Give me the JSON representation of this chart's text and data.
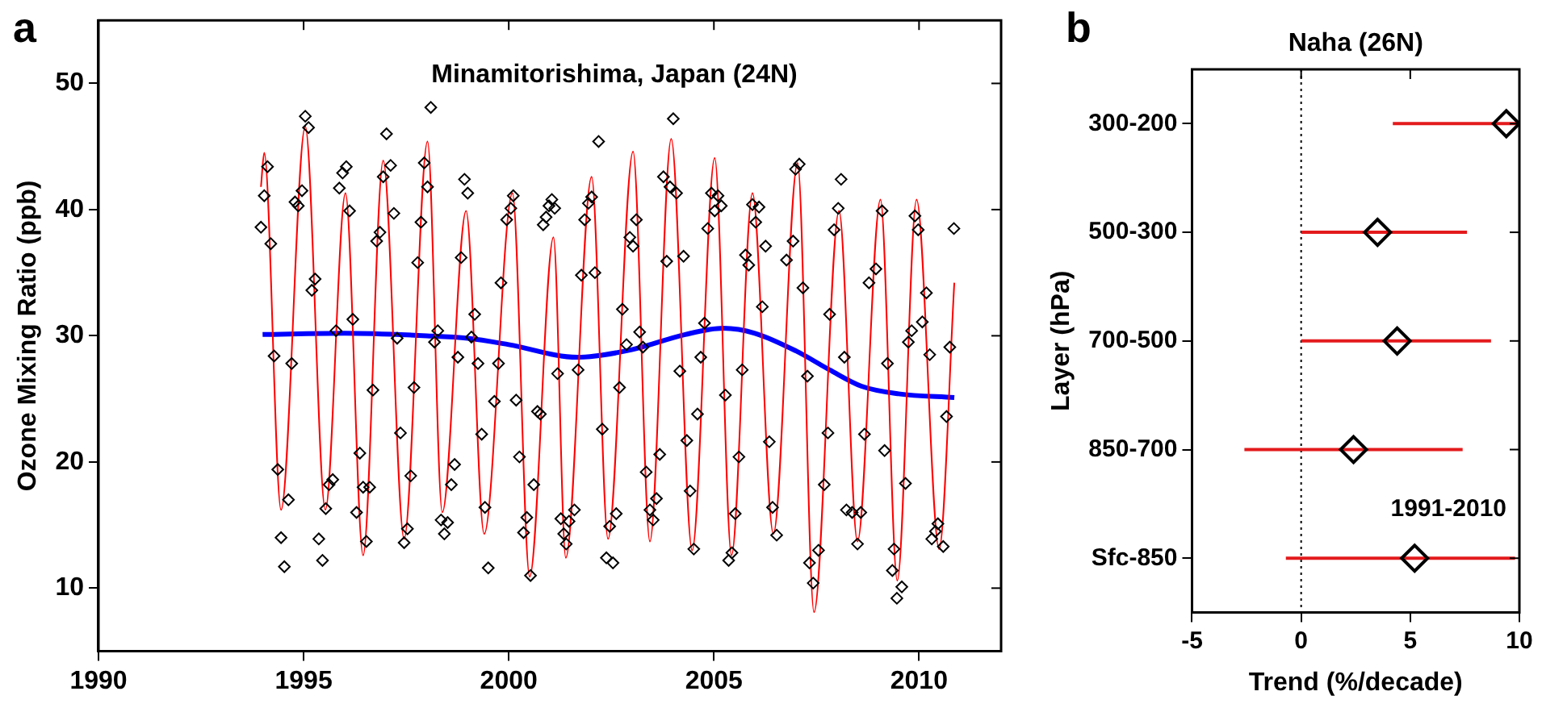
{
  "chart_data": [
    {
      "type": "scatter",
      "title": "Minamitorishima, Japan (24N)",
      "ylabel": "Ozone Mixing Ratio (ppb)",
      "annotations": [
        "a"
      ],
      "xlim": [
        1990,
        2012
      ],
      "xticks": [
        1990,
        1995,
        2000,
        2005,
        2010
      ],
      "ylim": [
        5,
        55
      ],
      "yticks": [
        10,
        20,
        30,
        40,
        50
      ],
      "series": [
        {
          "marker": "diamond",
          "color": "#000000",
          "x": [
            1993.96,
            1994.04,
            1994.12,
            1994.2,
            1994.28,
            1994.37,
            1994.45,
            1994.53,
            1994.63,
            1994.71,
            1994.79,
            1994.87,
            1994.96,
            1995.04,
            1995.12,
            1995.2,
            1995.28,
            1995.37,
            1995.46,
            1995.54,
            1995.62,
            1995.71,
            1995.79,
            1995.87,
            1995.95,
            1996.04,
            1996.12,
            1996.2,
            1996.29,
            1996.37,
            1996.45,
            1996.53,
            1996.61,
            1996.69,
            1996.78,
            1996.86,
            1996.94,
            1997.02,
            1997.12,
            1997.2,
            1997.28,
            1997.36,
            1997.45,
            1997.53,
            1997.61,
            1997.69,
            1997.78,
            1997.86,
            1997.94,
            1998.02,
            1998.1,
            1998.19,
            1998.27,
            1998.35,
            1998.43,
            1998.51,
            1998.6,
            1998.68,
            1998.76,
            1998.84,
            1998.92,
            1999.0,
            1999.09,
            1999.17,
            1999.25,
            1999.34,
            1999.42,
            1999.5,
            1999.65,
            1999.75,
            1999.81,
            1999.95,
            2000.05,
            2000.11,
            2000.18,
            2000.26,
            2000.36,
            2000.44,
            2000.53,
            2000.61,
            2000.7,
            2000.77,
            2000.84,
            2000.91,
            2000.98,
            2001.05,
            2001.12,
            2001.19,
            2001.27,
            2001.34,
            2001.4,
            2001.47,
            2001.6,
            2001.69,
            2001.77,
            2001.85,
            2001.94,
            2002.02,
            2002.1,
            2002.19,
            2002.28,
            2002.38,
            2002.46,
            2002.54,
            2002.62,
            2002.7,
            2002.77,
            2002.87,
            2002.95,
            2003.03,
            2003.11,
            2003.19,
            2003.27,
            2003.35,
            2003.44,
            2003.52,
            2003.6,
            2003.68,
            2003.77,
            2003.85,
            2003.93,
            2004.01,
            2004.09,
            2004.17,
            2004.26,
            2004.34,
            2004.42,
            2004.51,
            2004.6,
            2004.68,
            2004.77,
            2004.85,
            2004.94,
            2005.02,
            2005.1,
            2005.18,
            2005.28,
            2005.36,
            2005.44,
            2005.52,
            2005.61,
            2005.69,
            2005.77,
            2005.85,
            2005.94,
            2006.02,
            2006.1,
            2006.18,
            2006.26,
            2006.35,
            2006.43,
            2006.53,
            2006.77,
            2006.93,
            2006.99,
            2007.08,
            2007.17,
            2007.28,
            2007.33,
            2007.42,
            2007.55,
            2007.69,
            2007.78,
            2007.82,
            2007.93,
            2008.03,
            2008.1,
            2008.18,
            2008.23,
            2008.37,
            2008.5,
            2008.58,
            2008.67,
            2008.78,
            2008.95,
            2009.1,
            2009.16,
            2009.23,
            2009.35,
            2009.39,
            2009.46,
            2009.58,
            2009.67,
            2009.74,
            2009.82,
            2009.9,
            2009.98,
            2010.08,
            2010.18,
            2010.26,
            2010.31,
            2010.4,
            2010.46,
            2010.59,
            2010.67,
            2010.75,
            2010.85
          ],
          "values": [
            38.6,
            41.1,
            43.4,
            37.3,
            28.4,
            19.4,
            14.0,
            11.7,
            17.0,
            27.8,
            40.6,
            40.3,
            41.5,
            47.4,
            46.5,
            33.6,
            34.5,
            13.9,
            12.2,
            16.3,
            18.2,
            18.6,
            30.4,
            41.7,
            42.9,
            43.4,
            39.9,
            31.3,
            16.0,
            20.7,
            18.0,
            13.7,
            18.0,
            25.7,
            37.5,
            38.2,
            42.6,
            46.0,
            43.5,
            39.7,
            29.8,
            22.3,
            13.6,
            14.7,
            18.9,
            25.9,
            35.8,
            39.0,
            43.7,
            41.8,
            48.1,
            29.5,
            30.4,
            15.4,
            14.3,
            15.2,
            18.2,
            19.8,
            28.3,
            36.2,
            42.4,
            41.3,
            29.9,
            31.7,
            27.8,
            22.2,
            16.4,
            11.6,
            24.8,
            27.8,
            34.2,
            39.2,
            40.1,
            41.1,
            24.9,
            20.4,
            14.4,
            15.6,
            11.0,
            18.2,
            24.0,
            23.8,
            38.8,
            39.4,
            40.3,
            40.8,
            40.1,
            27.0,
            15.5,
            14.3,
            13.5,
            15.3,
            16.2,
            27.3,
            34.8,
            39.2,
            40.5,
            41.0,
            35.0,
            45.4,
            22.6,
            12.4,
            14.9,
            12.0,
            15.9,
            25.9,
            32.1,
            29.3,
            37.8,
            37.1,
            39.2,
            30.3,
            29.1,
            19.2,
            16.2,
            15.4,
            17.1,
            20.6,
            42.6,
            35.9,
            41.8,
            47.2,
            41.3,
            27.2,
            36.3,
            21.7,
            17.7,
            13.1,
            23.8,
            28.3,
            31.0,
            38.5,
            41.3,
            39.9,
            41.1,
            40.3,
            25.3,
            12.2,
            12.8,
            15.9,
            20.4,
            27.3,
            36.4,
            35.6,
            40.4,
            39.0,
            40.2,
            32.3,
            37.1,
            21.6,
            16.4,
            14.2,
            36.0,
            37.5,
            43.2,
            43.6,
            33.8,
            26.8,
            12.0,
            10.4,
            13.0,
            18.2,
            22.3,
            31.7,
            38.4,
            40.1,
            42.4,
            28.3,
            16.2,
            16.0,
            13.5,
            16.0,
            22.2,
            34.2,
            35.3,
            39.9,
            20.9,
            27.8,
            11.4,
            13.1,
            9.2,
            10.1,
            18.3,
            29.5,
            30.4,
            39.5,
            38.4,
            31.1,
            33.4,
            28.5,
            13.9,
            14.5,
            15.1,
            13.3,
            23.6,
            29.1,
            38.5
          ]
        },
        {
          "type": "line",
          "color": "#ff0000",
          "x": [
            1993.96,
            1994.04,
            1994.45,
            1995.04,
            1995.53,
            1996.02,
            1996.45,
            1996.94,
            1997.45,
            1998.02,
            1998.38,
            1998.96,
            1999.4,
            2000.09,
            2000.51,
            2001.09,
            2001.39,
            2002.02,
            2002.42,
            2003.03,
            2003.44,
            2003.96,
            2004.47,
            2005.02,
            2005.43,
            2005.94,
            2006.45,
            2007.04,
            2007.44,
            2008.05,
            2008.5,
            2009.06,
            2009.47,
            2009.94,
            2010.49,
            2010.86
          ],
          "values": [
            41.8,
            44.5,
            16.2,
            46.6,
            16.2,
            41.3,
            12.6,
            43.9,
            13.9,
            45.4,
            16.0,
            39.9,
            14.3,
            41.3,
            10.9,
            37.8,
            12.4,
            42.6,
            13.9,
            44.6,
            13.7,
            45.6,
            13.0,
            44.1,
            12.6,
            41.3,
            14.3,
            43.7,
            8.1,
            39.9,
            13.7,
            40.8,
            10.6,
            40.8,
            13.1,
            34.2
          ]
        },
        {
          "type": "line",
          "color": "#0000ff",
          "x": [
            1994.0,
            1996.0,
            1998.0,
            1999.0,
            2000.0,
            2001.67,
            2003.0,
            2004.3,
            2005.23,
            2006.0,
            2007.0,
            2007.82,
            2008.6,
            2009.5,
            2010.86
          ],
          "values": [
            30.1,
            30.2,
            30.0,
            29.8,
            29.3,
            28.3,
            28.9,
            30.1,
            30.6,
            30.2,
            28.8,
            27.3,
            26.0,
            25.4,
            25.1
          ]
        }
      ]
    },
    {
      "type": "scatter",
      "orientation": "horizontal",
      "title": "Naha (26N)",
      "xlabel": "Trend (%/decade)",
      "ylabel": "Layer (hPa)",
      "annotations": [
        "b",
        "1991-2010"
      ],
      "marker": "diamond",
      "categories": [
        "300-200",
        "500-300",
        "700-500",
        "850-700",
        "Sfc-850"
      ],
      "xlim": [
        -5,
        10
      ],
      "xticks": [
        -5,
        0,
        5,
        10
      ],
      "ref_lines": [
        {
          "axis": "x",
          "value": 0,
          "line_style": "dotted",
          "color": "#000000"
        }
      ],
      "series": [
        {
          "color": "#000000",
          "values": [
            9.4,
            3.5,
            4.4,
            2.4,
            5.2
          ],
          "errors": [
            [
              4.2,
              10
            ],
            [
              0,
              7.6
            ],
            [
              0,
              8.7
            ],
            [
              -2.6,
              7.4
            ],
            [
              -0.7,
              9.8
            ]
          ]
        }
      ]
    }
  ]
}
